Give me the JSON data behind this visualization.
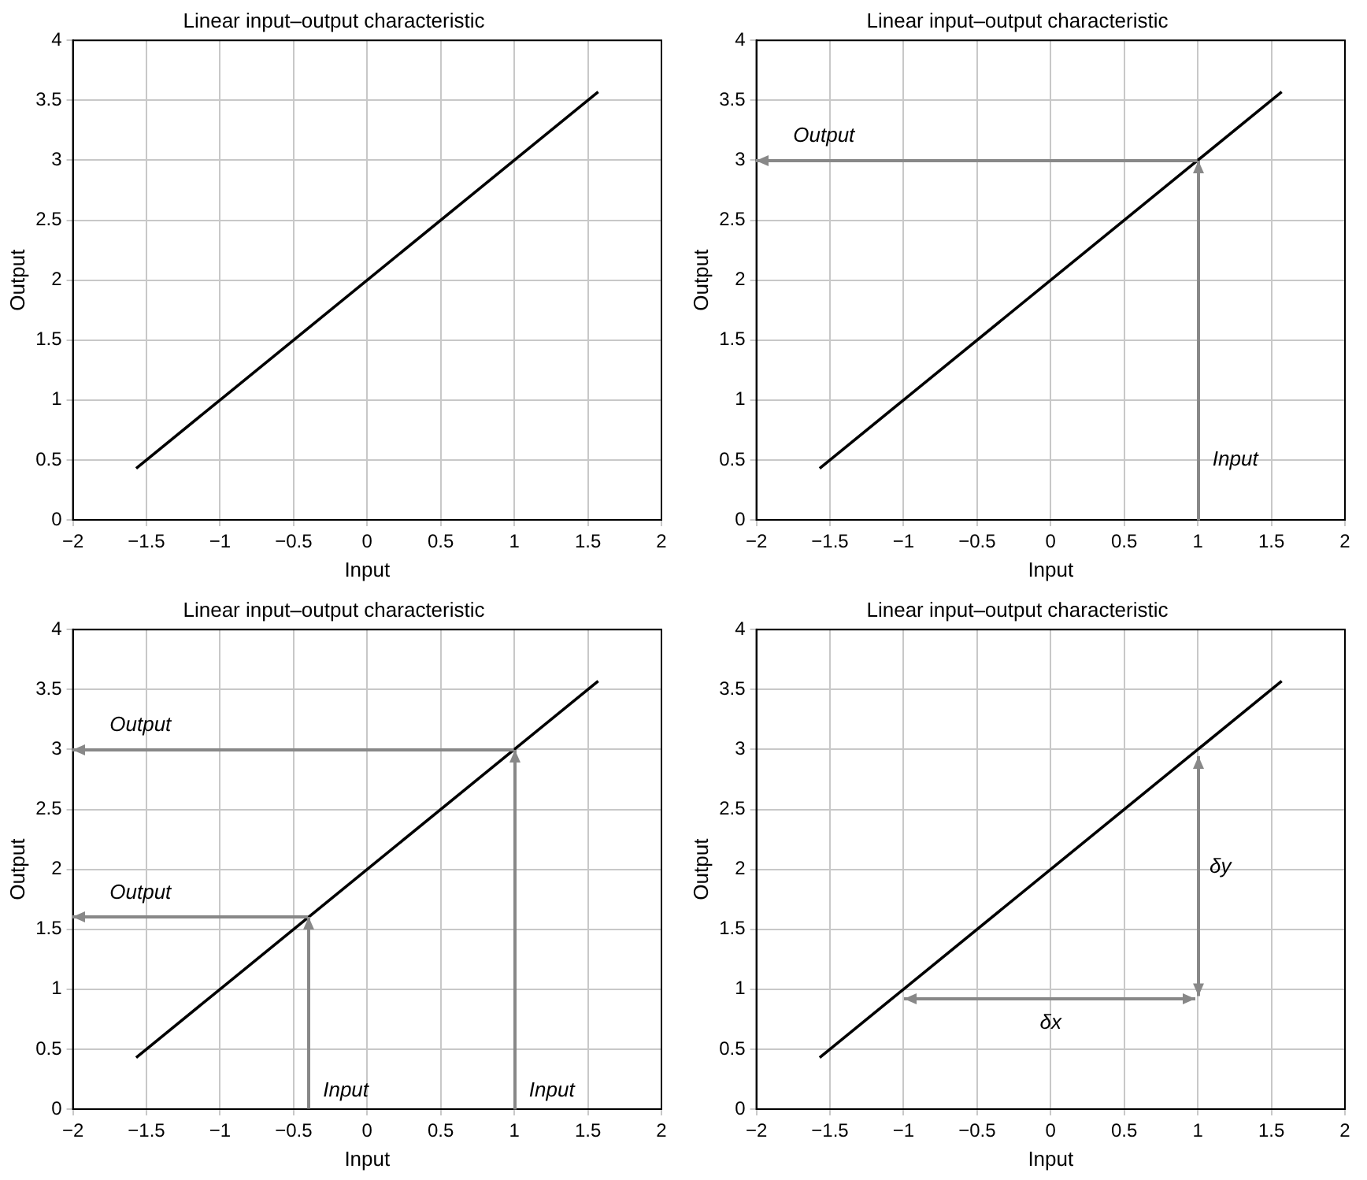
{
  "chart_data": [
    {
      "type": "line",
      "title": "Linear input–output characteristic",
      "xlabel": "Input",
      "ylabel": "Output",
      "xlim": [
        -2,
        2
      ],
      "ylim": [
        0,
        4
      ],
      "xticks": [
        {
          "value": -2,
          "label": "−2"
        },
        {
          "value": -1.5,
          "label": "−1.5"
        },
        {
          "value": -1,
          "label": "−1"
        },
        {
          "value": -0.5,
          "label": "−0.5"
        },
        0,
        0.5,
        1,
        1.5,
        2
      ],
      "yticks": [
        0,
        0.5,
        1,
        1.5,
        2,
        2.5,
        3,
        3.5,
        4
      ],
      "grid": true,
      "series": [
        {
          "color": "#000000",
          "x": [
            -1.57,
            -1,
            0,
            1,
            1.57
          ],
          "values": [
            0.43,
            1,
            2,
            3,
            3.57
          ]
        }
      ]
    },
    {
      "type": "line",
      "title": "Linear input–output characteristic",
      "xlabel": "Input",
      "ylabel": "Output",
      "xlim": [
        -2,
        2
      ],
      "ylim": [
        0,
        4
      ],
      "xticks": [
        {
          "value": -2,
          "label": "−2"
        },
        {
          "value": -1.5,
          "label": "−1.5"
        },
        {
          "value": -1,
          "label": "−1"
        },
        {
          "value": -0.5,
          "label": "−0.5"
        },
        0,
        0.5,
        1,
        1.5,
        2
      ],
      "yticks": [
        0,
        0.5,
        1,
        1.5,
        2,
        2.5,
        3,
        3.5,
        4
      ],
      "grid": true,
      "series": [
        {
          "color": "#000000",
          "x": [
            -1.57,
            -1,
            0,
            1,
            1.57
          ],
          "values": [
            0.43,
            1,
            2,
            3,
            3.57
          ]
        }
      ],
      "annotations": [
        "Input",
        "Output"
      ]
    },
    {
      "type": "line",
      "title": "Linear input–output characteristic",
      "xlabel": "Input",
      "ylabel": "Output",
      "xlim": [
        -2,
        2
      ],
      "ylim": [
        0,
        4
      ],
      "xticks": [
        {
          "value": -2,
          "label": "−2"
        },
        {
          "value": -1.5,
          "label": "−1.5"
        },
        {
          "value": -1,
          "label": "−1"
        },
        {
          "value": -0.5,
          "label": "−0.5"
        },
        0,
        0.5,
        1,
        1.5,
        2
      ],
      "yticks": [
        0,
        0.5,
        1,
        1.5,
        2,
        2.5,
        3,
        3.5,
        4
      ],
      "grid": true,
      "series": [
        {
          "color": "#000000",
          "x": [
            -1.57,
            -1,
            0,
            1,
            1.57
          ],
          "values": [
            0.43,
            1,
            2,
            3,
            3.57
          ]
        }
      ],
      "annotations": [
        "Input",
        "Output",
        {
          "text": "Input",
          "x": -0.4,
          "y": 1.6
        },
        "Output"
      ]
    },
    {
      "type": "line",
      "title": "Linear input–output characteristic",
      "xlabel": "Input",
      "ylabel": "Output",
      "xlim": [
        -2,
        2
      ],
      "ylim": [
        0,
        4
      ],
      "xticks": [
        {
          "value": -2,
          "label": "−2"
        },
        {
          "value": -1.5,
          "label": "−1.5"
        },
        {
          "value": -1,
          "label": "−1"
        },
        {
          "value": -0.5,
          "label": "−0.5"
        },
        0,
        0.5,
        1,
        1.5,
        2
      ],
      "yticks": [
        0,
        0.5,
        1,
        1.5,
        2,
        2.5,
        3,
        3.5,
        4
      ],
      "grid": true,
      "series": [
        {
          "color": "#000000",
          "x": [
            -1.57,
            -1,
            0,
            1,
            1.57
          ],
          "values": [
            0.43,
            1,
            2,
            3,
            3.57
          ]
        }
      ],
      "annotations": [
        "δx",
        "δy"
      ]
    }
  ]
}
